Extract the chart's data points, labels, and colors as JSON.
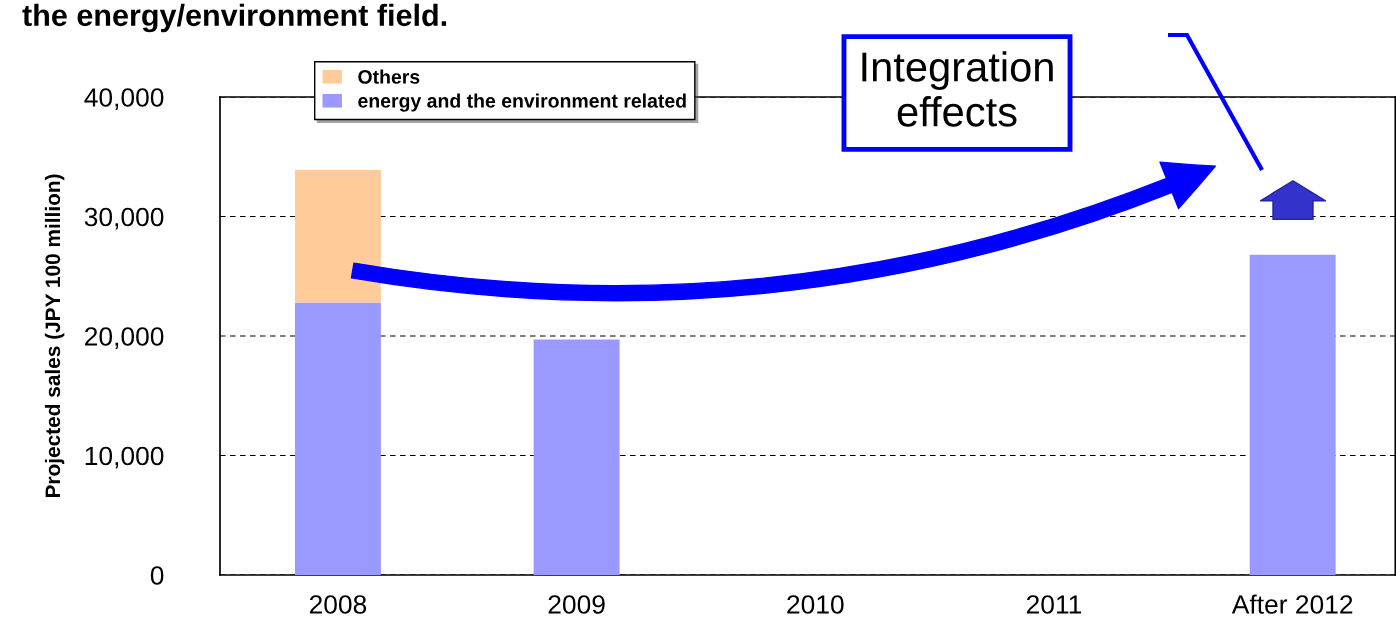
{
  "chart_data": {
    "type": "bar",
    "title": "the energy/environment field.",
    "ylabel": "Projected sales (JPY 100 million)",
    "categories": [
      "2008",
      "2009",
      "2010",
      "2011",
      "After 2012"
    ],
    "stacked": true,
    "series": [
      {
        "name": "energy and the environment related",
        "color": "#9999ff",
        "values": [
          22800,
          19700,
          null,
          null,
          26800
        ]
      },
      {
        "name": "Others",
        "color": "#ffcc99",
        "values": [
          11100,
          null,
          null,
          null,
          null
        ]
      }
    ],
    "ylim": [
      0,
      40000
    ],
    "yticks": [
      {
        "value": 0,
        "label": "0"
      },
      {
        "value": 10000,
        "label": "10,000"
      },
      {
        "value": 20000,
        "label": "20,000"
      },
      {
        "value": 30000,
        "label": "30,000"
      },
      {
        "value": 40000,
        "label": "40,000"
      }
    ],
    "grid": "y",
    "line_style": "dashed",
    "legend": "top left",
    "annotations": [
      "Integration effects"
    ]
  }
}
